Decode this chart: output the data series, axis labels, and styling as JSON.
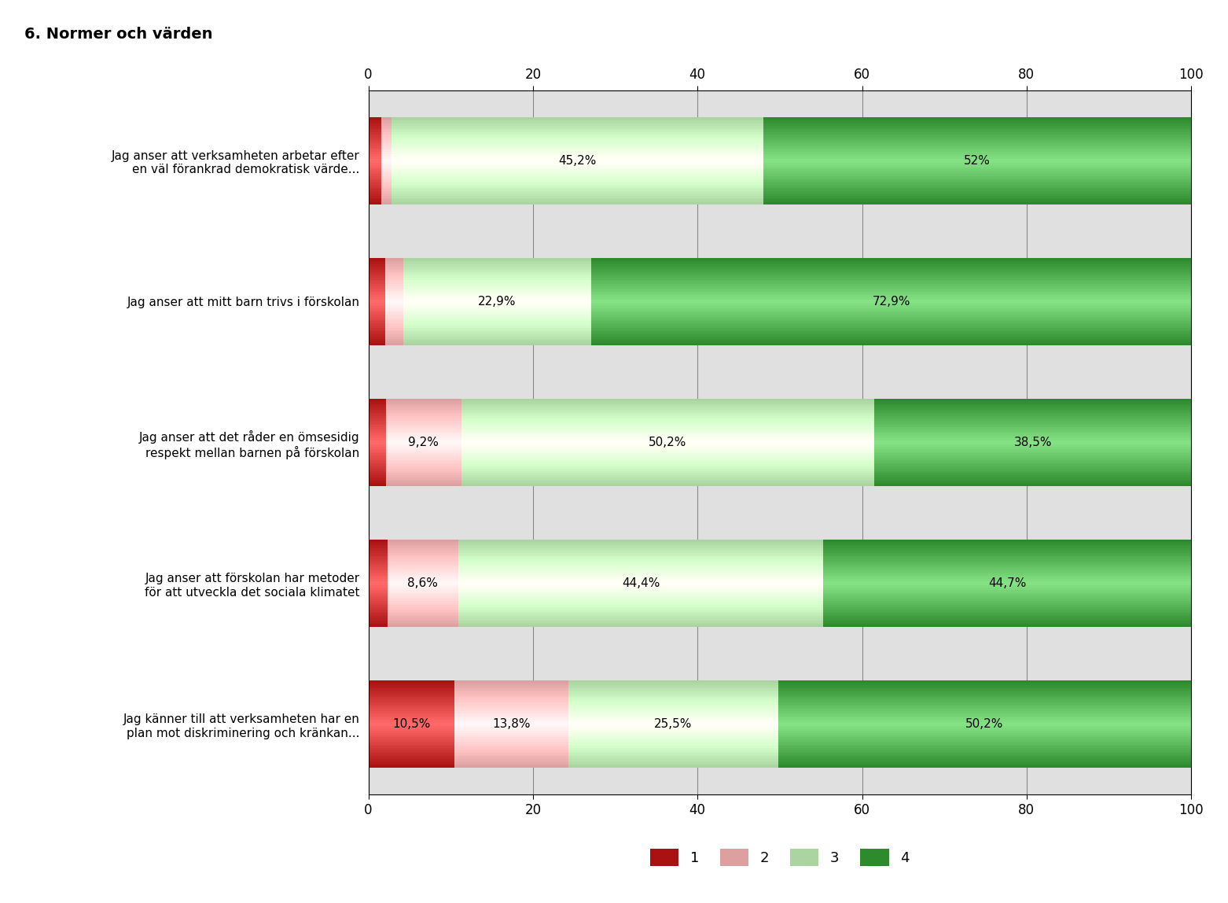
{
  "title": "6. Normer och värden",
  "categories": [
    "Jag anser att verksamheten arbetar efter\nen väl förankrad demokratisk värde...",
    "Jag anser att mitt barn trivs i förskolan",
    "Jag anser att det råder en ömsesidig\nrespekt mellan barnen på förskolan",
    "Jag anser att förskolan har metoder\nför att utveckla det sociala klimatet",
    "Jag känner till att verksamheten har en\nplan mot diskriminering och kränkan..."
  ],
  "values": [
    [
      1.6,
      1.2,
      45.2,
      52.0
    ],
    [
      2.0,
      2.2,
      22.9,
      72.9
    ],
    [
      2.1,
      9.2,
      50.2,
      38.5
    ],
    [
      2.3,
      8.6,
      44.4,
      44.7
    ],
    [
      10.5,
      13.8,
      25.5,
      50.2
    ]
  ],
  "labels": [
    [
      "",
      "",
      "45,2%",
      "52%"
    ],
    [
      "",
      "",
      "22,9%",
      "72,9%"
    ],
    [
      "",
      "9,2%",
      "50,2%",
      "38,5%"
    ],
    [
      "",
      "8,6%",
      "44,4%",
      "44,7%"
    ],
    [
      "10,5%",
      "13,8%",
      "25,5%",
      "50,2%"
    ]
  ],
  "colors": [
    "#aa1111",
    "#dda0a0",
    "#aad4a0",
    "#2d8b2d"
  ],
  "legend_labels": [
    "1",
    "2",
    "3",
    "4"
  ],
  "xlim": [
    0,
    100
  ],
  "xticks": [
    0,
    20,
    40,
    60,
    80,
    100
  ],
  "background_color": "#e0e0e0",
  "title_fontsize": 14,
  "bar_height": 0.62
}
